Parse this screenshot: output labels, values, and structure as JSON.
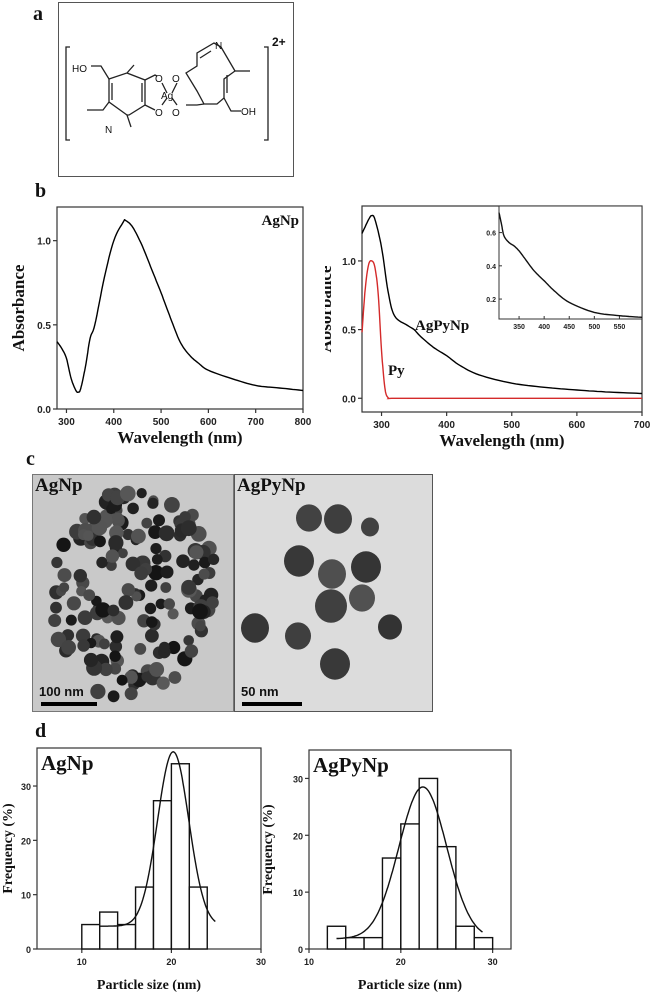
{
  "panels": {
    "a": {
      "letter": "a",
      "structure": {
        "labels": [
          "HO",
          "O",
          "O",
          "Ag",
          "O",
          "O",
          "N",
          "N",
          "OH"
        ],
        "charge": "2+"
      }
    },
    "b": {
      "letter": "b"
    },
    "c": {
      "letter": "c",
      "images": [
        {
          "label": "AgNp",
          "scale_bar": "100 nm"
        },
        {
          "label": "AgPyNp",
          "scale_bar": "50 nm"
        }
      ]
    },
    "d": {
      "letter": "d"
    }
  },
  "chart_data": [
    {
      "id": "b-left",
      "type": "line",
      "title": "",
      "annotation": "AgNp",
      "xlabel": "Wavelength (nm)",
      "ylabel": "Absorbance",
      "xlim": [
        280,
        800
      ],
      "ylim": [
        0.0,
        1.2
      ],
      "xticks": [
        300,
        400,
        500,
        600,
        700,
        800
      ],
      "yticks": [
        "0.0",
        "0.5",
        "1.0"
      ],
      "series": [
        {
          "name": "AgNp",
          "color": "#000000",
          "x": [
            280,
            290,
            300,
            310,
            320,
            325,
            330,
            340,
            350,
            360,
            380,
            400,
            420,
            425,
            440,
            460,
            480,
            500,
            520,
            540,
            560,
            580,
            600,
            650,
            700,
            750,
            800
          ],
          "y": [
            0.4,
            0.36,
            0.3,
            0.18,
            0.11,
            0.1,
            0.12,
            0.25,
            0.42,
            0.5,
            0.78,
            1.0,
            1.11,
            1.12,
            1.08,
            0.97,
            0.83,
            0.69,
            0.54,
            0.4,
            0.32,
            0.27,
            0.23,
            0.18,
            0.14,
            0.125,
            0.11
          ]
        }
      ]
    },
    {
      "id": "b-right",
      "type": "line",
      "xlabel": "Wavelength (nm)",
      "ylabel": "Absorbance",
      "xlim": [
        270,
        700
      ],
      "ylim": [
        -0.1,
        1.4
      ],
      "xticks": [
        300,
        400,
        500,
        600,
        700
      ],
      "yticks": [
        "0.0",
        "0.5",
        "1.0"
      ],
      "series": [
        {
          "name": "AgPyNp",
          "color": "#000000",
          "x": [
            270,
            280,
            285,
            290,
            300,
            310,
            320,
            340,
            350,
            360,
            380,
            400,
            420,
            450,
            500,
            550,
            600,
            650,
            700
          ],
          "y": [
            1.2,
            1.3,
            1.33,
            1.3,
            1.1,
            0.78,
            0.6,
            0.53,
            0.5,
            0.45,
            0.37,
            0.31,
            0.24,
            0.17,
            0.11,
            0.08,
            0.06,
            0.045,
            0.035
          ]
        },
        {
          "name": "Py",
          "color": "#d42a2a",
          "x": [
            270,
            275,
            280,
            285,
            290,
            295,
            300,
            305,
            310,
            320,
            400,
            500,
            600,
            700
          ],
          "y": [
            0.48,
            0.8,
            0.97,
            1.0,
            0.95,
            0.75,
            0.35,
            0.08,
            0.005,
            0.0,
            0.0,
            0.0,
            0.0,
            0.0
          ]
        }
      ],
      "labels": [
        "AgPyNp",
        "Py"
      ],
      "inset": {
        "xlim": [
          310,
          595
        ],
        "ylim": [
          0.08,
          0.76
        ],
        "xticks": [
          350,
          400,
          450,
          500,
          550
        ],
        "yticks": [
          "0.2",
          "0.4",
          "0.6"
        ],
        "series": {
          "x": [
            310,
            315,
            320,
            330,
            340,
            350,
            360,
            380,
            400,
            420,
            450,
            500,
            550,
            595
          ],
          "y": [
            0.72,
            0.65,
            0.58,
            0.54,
            0.52,
            0.49,
            0.45,
            0.37,
            0.31,
            0.25,
            0.18,
            0.12,
            0.1,
            0.09
          ]
        }
      }
    },
    {
      "id": "d-left",
      "type": "bar",
      "annotation": "AgNp",
      "xlabel": "Particle size (nm)",
      "ylabel": "Frequency (%)",
      "xlim": [
        5,
        30
      ],
      "ylim": [
        0,
        37
      ],
      "xticks": [
        10,
        20,
        30
      ],
      "yticks": [
        0,
        10,
        20,
        30
      ],
      "bins": [
        [
          10,
          12
        ],
        [
          12,
          14
        ],
        [
          14,
          16
        ],
        [
          16,
          18
        ],
        [
          18,
          20
        ],
        [
          20,
          22
        ],
        [
          22,
          24
        ]
      ],
      "values": [
        4.5,
        6.8,
        4.5,
        11.4,
        27.3,
        34.1,
        11.4
      ],
      "fit": {
        "type": "gaussian",
        "center": 20.2,
        "peak": 36.3,
        "sigma": 1.75,
        "baseline": 4.2,
        "range": [
          12,
          25
        ]
      }
    },
    {
      "id": "d-right",
      "type": "bar",
      "annotation": "AgPyNp",
      "xlabel": "Particle size (nm)",
      "ylabel": "Frequency (%)",
      "xlim": [
        10,
        32
      ],
      "ylim": [
        0,
        35
      ],
      "xticks": [
        10,
        20,
        30
      ],
      "yticks": [
        0,
        10,
        20,
        30
      ],
      "bins": [
        [
          12,
          14
        ],
        [
          14,
          16
        ],
        [
          16,
          18
        ],
        [
          18,
          20
        ],
        [
          20,
          22
        ],
        [
          22,
          24
        ],
        [
          24,
          26
        ],
        [
          26,
          28
        ],
        [
          28,
          30
        ]
      ],
      "values": [
        4,
        2,
        2,
        16,
        22,
        30,
        18,
        4,
        2
      ],
      "fit": {
        "type": "gaussian",
        "center": 22.4,
        "peak": 28.5,
        "sigma": 2.6,
        "baseline": 1.8,
        "range": [
          13,
          29
        ]
      }
    }
  ]
}
